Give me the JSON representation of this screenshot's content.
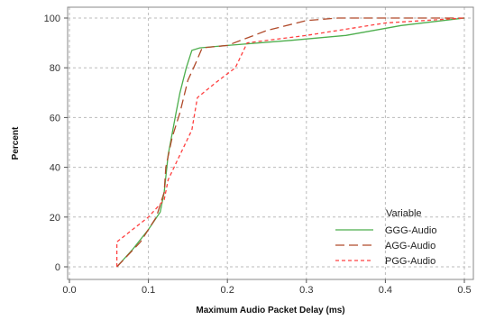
{
  "chart_data": {
    "type": "line",
    "xlabel": "Maximum Audio Packet Delay (ms)",
    "ylabel": "Percent",
    "xlim": [
      0.0,
      0.5
    ],
    "ylim": [
      0,
      100
    ],
    "x_ticks": [
      "0.0",
      "0.1",
      "0.2",
      "0.3",
      "0.4",
      "0.5"
    ],
    "y_ticks": [
      "0",
      "20",
      "40",
      "60",
      "80",
      "100"
    ],
    "grid": true,
    "legend": {
      "title": "Variable",
      "placement": "bottom-right"
    },
    "series": [
      {
        "name": "GGG-Audio",
        "color": "#4cae4c",
        "dash": "solid",
        "points": [
          [
            0.06,
            0
          ],
          [
            0.08,
            7
          ],
          [
            0.1,
            15
          ],
          [
            0.115,
            22
          ],
          [
            0.12,
            30
          ],
          [
            0.125,
            45
          ],
          [
            0.135,
            62
          ],
          [
            0.14,
            70
          ],
          [
            0.148,
            80
          ],
          [
            0.155,
            87
          ],
          [
            0.165,
            88
          ],
          [
            0.2,
            89
          ],
          [
            0.28,
            91
          ],
          [
            0.35,
            93
          ],
          [
            0.42,
            97
          ],
          [
            0.5,
            100
          ]
        ]
      },
      {
        "name": "AGG-Audio",
        "color": "#b04a2a",
        "dash": "long",
        "points": [
          [
            0.06,
            0
          ],
          [
            0.09,
            10
          ],
          [
            0.11,
            20
          ],
          [
            0.12,
            30
          ],
          [
            0.122,
            40
          ],
          [
            0.13,
            52
          ],
          [
            0.14,
            62
          ],
          [
            0.15,
            75
          ],
          [
            0.16,
            82
          ],
          [
            0.168,
            88
          ],
          [
            0.2,
            89
          ],
          [
            0.25,
            95
          ],
          [
            0.3,
            99
          ],
          [
            0.34,
            100
          ],
          [
            0.5,
            100
          ]
        ]
      },
      {
        "name": "PGG-Audio",
        "color": "#ff4040",
        "dash": "short",
        "points": [
          [
            0.06,
            0
          ],
          [
            0.06,
            10
          ],
          [
            0.08,
            15
          ],
          [
            0.1,
            20
          ],
          [
            0.12,
            27
          ],
          [
            0.125,
            35
          ],
          [
            0.14,
            45
          ],
          [
            0.155,
            55
          ],
          [
            0.162,
            68
          ],
          [
            0.185,
            74
          ],
          [
            0.21,
            80
          ],
          [
            0.225,
            90
          ],
          [
            0.3,
            93
          ],
          [
            0.4,
            98
          ],
          [
            0.5,
            100
          ]
        ]
      }
    ]
  }
}
